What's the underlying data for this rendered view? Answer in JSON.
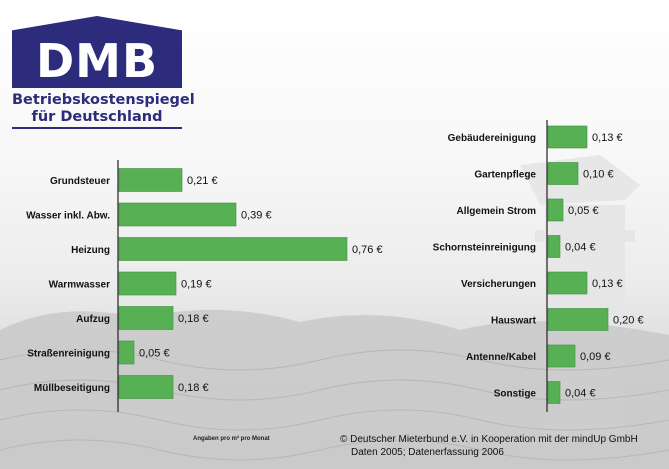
{
  "logo": {
    "title": "DMB",
    "subtitle_line1": "Betriebskostenspiegel",
    "subtitle_line2": "für Deutschland"
  },
  "footnote": "Angaben pro m² pro Monat",
  "copyright": {
    "line1": "© Deutscher Mieterbund e.V. in Kooperation mit der mindUp GmbH",
    "line2": "Daten 2005; Datenerfassung 2006"
  },
  "colors": {
    "bar": "#58b055",
    "bar_edge": "#3e8f3c",
    "axis": "#222222",
    "logo": "#2c2b7c"
  },
  "chart_data": [
    {
      "type": "bar",
      "orientation": "horizontal",
      "categories": [
        "Grundsteuer",
        "Wasser inkl. Abw.",
        "Heizung",
        "Warmwasser",
        "Aufzug",
        "Straßenreinigung",
        "Müllbeseitigung"
      ],
      "values": [
        0.21,
        0.39,
        0.76,
        0.19,
        0.18,
        0.05,
        0.18
      ],
      "labels": [
        "0,21 €",
        "0,39 €",
        "0,76 €",
        "0,19 €",
        "0,18 €",
        "0,05 €",
        "0,18 €"
      ],
      "unit": "€",
      "xlim": [
        0,
        0.8
      ],
      "grid": false
    },
    {
      "type": "bar",
      "orientation": "horizontal",
      "categories": [
        "Gebäudereinigung",
        "Gartenpflege",
        "Allgemein Strom",
        "Schornsteinreinigung",
        "Versicherungen",
        "Hauswart",
        "Antenne/Kabel",
        "Sonstige"
      ],
      "values": [
        0.13,
        0.1,
        0.05,
        0.04,
        0.13,
        0.2,
        0.09,
        0.04
      ],
      "labels": [
        "0,13 €",
        "0,10 €",
        "0,05 €",
        "0,04 €",
        "0,13 €",
        "0,20 €",
        "0,09 €",
        "0,04 €"
      ],
      "unit": "€",
      "xlim": [
        0,
        0.8
      ],
      "grid": false
    }
  ]
}
